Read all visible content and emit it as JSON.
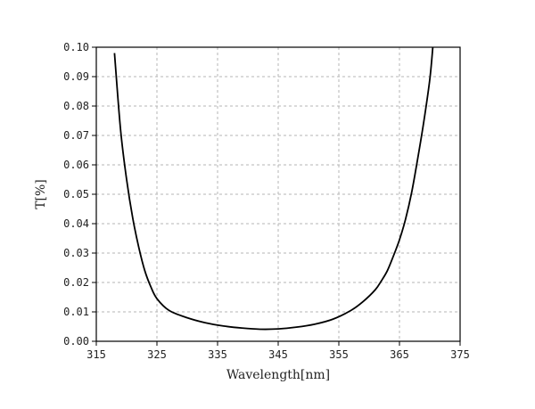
{
  "chart_data": {
    "type": "line",
    "title": "",
    "xlabel": "Wavelength[nm]",
    "ylabel": "T[%]",
    "xlim": [
      315,
      375
    ],
    "ylim": [
      0.0,
      0.1
    ],
    "x_ticks": [
      "315",
      "325",
      "335",
      "345",
      "355",
      "365",
      "375"
    ],
    "y_ticks": [
      "0.00",
      "0.01",
      "0.02",
      "0.03",
      "0.04",
      "0.05",
      "0.06",
      "0.07",
      "0.08",
      "0.09",
      "0.10"
    ],
    "grid": true,
    "series": [
      {
        "x": [
          318.0,
          319.0,
          320.0,
          321.0,
          322.0,
          323.0,
          324.0,
          325.0,
          327.0,
          330.0,
          333.0,
          336.0,
          339.0,
          342.0,
          345.0,
          348.0,
          351.0,
          354.0,
          357.0,
          359.0,
          361.0,
          362.0,
          363.0,
          364.0,
          365.0,
          366.0,
          367.0,
          368.0,
          369.0,
          370.0,
          370.5
        ],
        "y": [
          0.098,
          0.072,
          0.055,
          0.042,
          0.032,
          0.024,
          0.0185,
          0.0145,
          0.0105,
          0.008,
          0.0063,
          0.0052,
          0.0045,
          0.0041,
          0.0042,
          0.0048,
          0.0058,
          0.0075,
          0.0105,
          0.0135,
          0.0175,
          0.0205,
          0.024,
          0.029,
          0.0345,
          0.0415,
          0.0505,
          0.062,
          0.0745,
          0.089,
          0.1
        ]
      }
    ]
  }
}
